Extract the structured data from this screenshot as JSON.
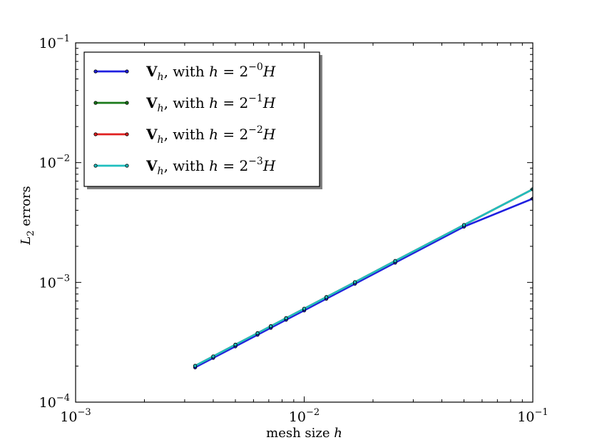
{
  "chart_data": {
    "type": "line",
    "title": "",
    "xlabel": {
      "text": "mesh size ",
      "var": "h"
    },
    "ylabel": {
      "var": "L",
      "sub": "2",
      "text": " errors"
    },
    "xscale": "log",
    "yscale": "log",
    "xlim": [
      0.001,
      0.1
    ],
    "ylim": [
      0.0001,
      0.1
    ],
    "xticks": [
      {
        "value": 0.001,
        "base": "10",
        "exp": "−3"
      },
      {
        "value": 0.01,
        "base": "10",
        "exp": "−2"
      },
      {
        "value": 0.1,
        "base": "10",
        "exp": "−1"
      }
    ],
    "yticks": [
      {
        "value": 0.0001,
        "base": "10",
        "exp": "−4"
      },
      {
        "value": 0.001,
        "base": "10",
        "exp": "−3"
      },
      {
        "value": 0.01,
        "base": "10",
        "exp": "−2"
      },
      {
        "value": 0.1,
        "base": "10",
        "exp": "−1"
      }
    ],
    "grid": false,
    "legend": "top-left",
    "x": [
      0.003333,
      0.004,
      0.005,
      0.00625,
      0.007143,
      0.008333,
      0.01,
      0.0125,
      0.016667,
      0.025,
      0.05,
      0.1
    ],
    "series": [
      {
        "label": {
          "prefix": "V",
          "sub": "h",
          "mid": ", with ",
          "var": "h",
          "eq": " = 2",
          "exp": "−0",
          "suffix": "H"
        },
        "color": "#1f1fe0",
        "values": [
          0.000195,
          0.000234,
          0.000292,
          0.000365,
          0.000417,
          0.000487,
          0.000583,
          0.00073,
          0.000973,
          0.00146,
          0.00292,
          0.005
        ]
      },
      {
        "label": {
          "prefix": "V",
          "sub": "h",
          "mid": ", with ",
          "var": "h",
          "eq": " = 2",
          "exp": "−1",
          "suffix": "H"
        },
        "color": "#1a7a1a",
        "values": [
          0.000201,
          0.000241,
          0.000302,
          0.000377,
          0.000431,
          0.000503,
          0.000603,
          0.000754,
          0.001005,
          0.00151,
          0.003016,
          0.006
        ]
      },
      {
        "label": {
          "prefix": "V",
          "sub": "h",
          "mid": ", with ",
          "var": "h",
          "eq": " = 2",
          "exp": "−2",
          "suffix": "H"
        },
        "color": "#e01f1f",
        "values": [
          0.000201,
          0.000241,
          0.000302,
          0.000377,
          0.000431,
          0.000503,
          0.000603,
          0.000754,
          0.001005,
          0.00151,
          0.003016,
          0.006
        ]
      },
      {
        "label": {
          "prefix": "V",
          "sub": "h",
          "mid": ", with ",
          "var": "h",
          "eq": " = 2",
          "exp": "−3",
          "suffix": "H"
        },
        "color": "#1fbfbf",
        "values": [
          0.000201,
          0.000241,
          0.000302,
          0.000377,
          0.000431,
          0.000503,
          0.000603,
          0.000754,
          0.001005,
          0.00151,
          0.003016,
          0.006
        ]
      }
    ]
  }
}
